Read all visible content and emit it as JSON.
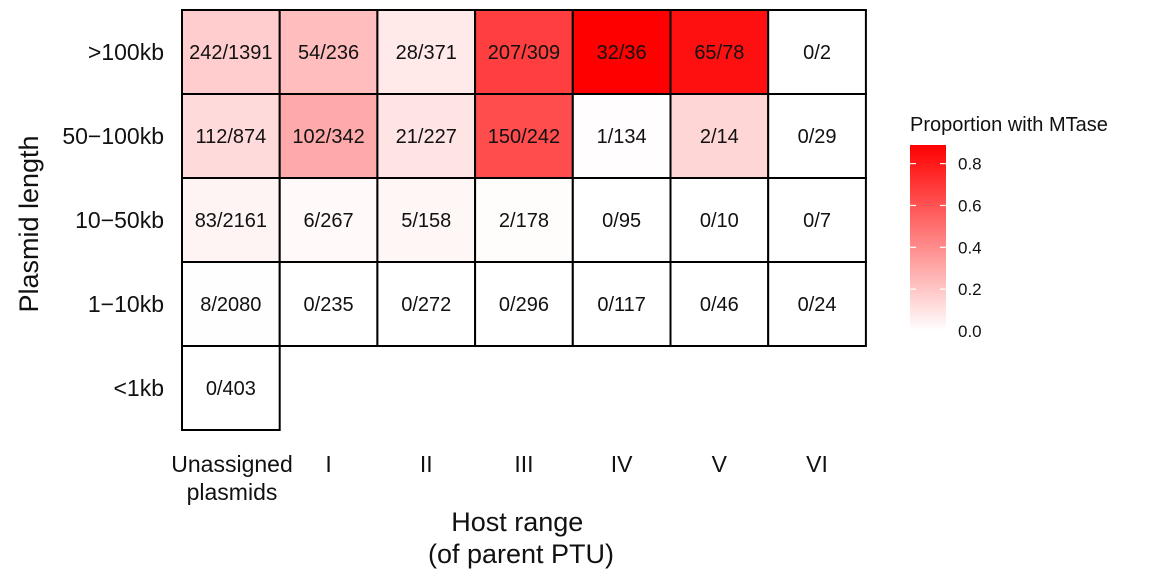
{
  "chart_data": {
    "type": "heatmap",
    "title": "",
    "xlabel_lines": [
      "Host range",
      "(of parent PTU)"
    ],
    "ylabel": "Plasmid length",
    "x_categories": [
      {
        "key": "unassigned",
        "lines": [
          "Unassigned",
          "plasmids"
        ]
      },
      {
        "key": "I",
        "lines": [
          "I"
        ]
      },
      {
        "key": "II",
        "lines": [
          "II"
        ]
      },
      {
        "key": "III",
        "lines": [
          "III"
        ]
      },
      {
        "key": "IV",
        "lines": [
          "IV"
        ]
      },
      {
        "key": "V",
        "lines": [
          "V"
        ]
      },
      {
        "key": "VI",
        "lines": [
          "VI"
        ]
      }
    ],
    "y_categories": [
      ">100kb",
      "50−100kb",
      "10−50kb",
      "1−10kb",
      "<1kb"
    ],
    "cells": [
      [
        {
          "label": "242/1391",
          "value": 0.174
        },
        {
          "label": "54/236",
          "value": 0.229
        },
        {
          "label": "28/371",
          "value": 0.075
        },
        {
          "label": "207/309",
          "value": 0.67
        },
        {
          "label": "32/36",
          "value": 0.889
        },
        {
          "label": "65/78",
          "value": 0.833
        },
        {
          "label": "0/2",
          "value": 0.0
        }
      ],
      [
        {
          "label": "112/874",
          "value": 0.128
        },
        {
          "label": "102/342",
          "value": 0.298
        },
        {
          "label": "21/227",
          "value": 0.093
        },
        {
          "label": "150/242",
          "value": 0.62
        },
        {
          "label": "1/134",
          "value": 0.007
        },
        {
          "label": "2/14",
          "value": 0.143
        },
        {
          "label": "0/29",
          "value": 0.0
        }
      ],
      [
        {
          "label": "83/2161",
          "value": 0.038
        },
        {
          "label": "6/267",
          "value": 0.022
        },
        {
          "label": "5/158",
          "value": 0.032
        },
        {
          "label": "2/178",
          "value": 0.011
        },
        {
          "label": "0/95",
          "value": 0.0
        },
        {
          "label": "0/10",
          "value": 0.0
        },
        {
          "label": "0/7",
          "value": 0.0
        }
      ],
      [
        {
          "label": "8/2080",
          "value": 0.004
        },
        {
          "label": "0/235",
          "value": 0.0
        },
        {
          "label": "0/272",
          "value": 0.0
        },
        {
          "label": "0/296",
          "value": 0.0
        },
        {
          "label": "0/117",
          "value": 0.0
        },
        {
          "label": "0/46",
          "value": 0.0
        },
        {
          "label": "0/24",
          "value": 0.0
        }
      ],
      [
        {
          "label": "0/403",
          "value": 0.0
        },
        null,
        null,
        null,
        null,
        null,
        null
      ]
    ],
    "color_scale": {
      "low": "#ffffff",
      "high": "#ff0000",
      "min": 0.0,
      "max": 0.889
    },
    "legend": {
      "title": "Proportion with MTase",
      "ticks": [
        "0.0",
        "0.2",
        "0.4",
        "0.6",
        "0.8"
      ],
      "tick_values": [
        0.0,
        0.2,
        0.4,
        0.6,
        0.8
      ],
      "placement": "right"
    }
  }
}
